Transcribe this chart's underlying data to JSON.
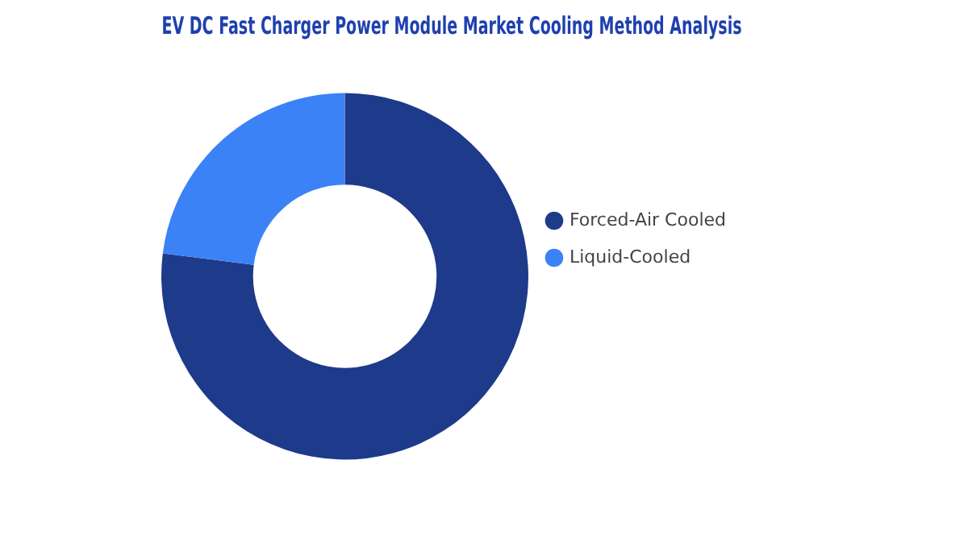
{
  "chart_data": {
    "type": "donut",
    "title": "EV DC Fast Charger Power Module Market Cooling Method Analysis",
    "categories": [
      "Forced-Air Cooled",
      "Liquid-Cooled"
    ],
    "values": [
      77,
      23
    ],
    "colors": [
      "#1e3a8a",
      "#3b82f6"
    ],
    "legend": "right"
  }
}
